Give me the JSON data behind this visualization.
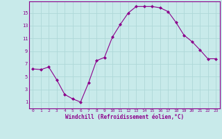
{
  "x": [
    0,
    1,
    2,
    3,
    4,
    5,
    6,
    7,
    8,
    9,
    10,
    11,
    12,
    13,
    14,
    15,
    16,
    17,
    18,
    19,
    20,
    21,
    22,
    23
  ],
  "y": [
    6.2,
    6.1,
    6.5,
    4.5,
    2.2,
    1.5,
    1.0,
    4.0,
    7.5,
    8.0,
    11.2,
    13.2,
    15.0,
    16.0,
    16.0,
    16.0,
    15.8,
    15.2,
    13.5,
    11.5,
    10.5,
    9.2,
    7.8,
    7.8
  ],
  "line_color": "#8B008B",
  "marker": "D",
  "marker_size": 2,
  "bg_color": "#c8eaea",
  "grid_color": "#aed8d8",
  "xlabel": "Windchill (Refroidissement éolien,°C)",
  "xlabel_color": "#8B008B",
  "tick_color": "#8B008B",
  "spine_color": "#8B008B",
  "xlim": [
    -0.5,
    23.5
  ],
  "ylim": [
    0,
    16.8
  ],
  "yticks": [
    1,
    3,
    5,
    7,
    9,
    11,
    13,
    15
  ],
  "xticks": [
    0,
    1,
    2,
    3,
    4,
    5,
    6,
    7,
    8,
    9,
    10,
    11,
    12,
    13,
    14,
    15,
    16,
    17,
    18,
    19,
    20,
    21,
    22,
    23
  ]
}
